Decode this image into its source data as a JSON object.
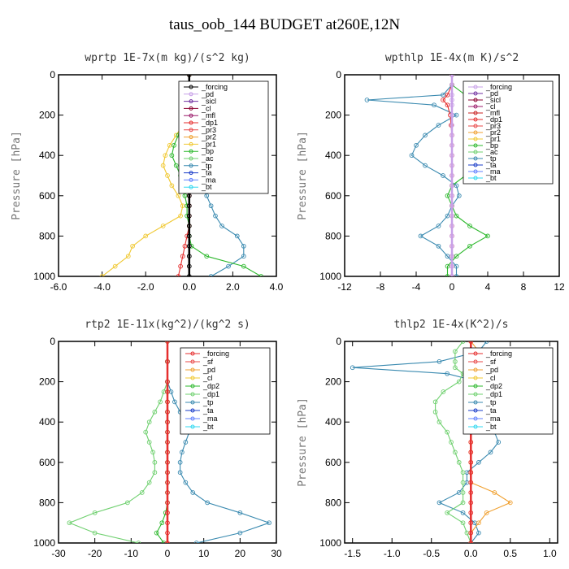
{
  "title": "taus_oob_144  BUDGET at260E,12N",
  "chart_data": [
    {
      "type": "line",
      "title": "wprtp  1E-7x(m kg)/(s^2 kg)",
      "ylabel": "Pressure [hPa]",
      "xlabel": "",
      "xlim": [
        -6,
        4
      ],
      "ylim": [
        1000,
        0
      ],
      "xticks": [
        "-6.0",
        "-4.0",
        "-2.0",
        "0.0",
        "2.0",
        "4.0"
      ],
      "xtick_values": [
        -6,
        -4,
        -2,
        0,
        2,
        4
      ],
      "yticks": [
        "0",
        "200",
        "400",
        "600",
        "800",
        "1000"
      ],
      "ytick_values": [
        0,
        200,
        400,
        600,
        800,
        1000
      ],
      "pressure": [
        0,
        50,
        100,
        150,
        200,
        250,
        300,
        350,
        400,
        450,
        500,
        550,
        600,
        650,
        700,
        750,
        800,
        850,
        900,
        950,
        1000
      ],
      "legend_position": "top-right",
      "legend": [
        "_forcing",
        "_pd",
        "_sicl",
        "_cl",
        "_mfl",
        "_dp1",
        "_pr3",
        "_pr2",
        "_pr1",
        "_bp",
        "_ac",
        "_tp",
        "_ta",
        "_ma",
        "_bt"
      ],
      "legend_colors": [
        "#000000",
        "#c8a0e8",
        "#7030a0",
        "#8b0030",
        "#9b1b6b",
        "#e62e2e",
        "#e84a4a",
        "#f0a030",
        "#f0c830",
        "#2db82d",
        "#6fd06f",
        "#3a8ab0",
        "#1a3cc8",
        "#6080ff",
        "#30d8f0"
      ],
      "series": [
        {
          "name": "_tp",
          "color": "#3a8ab0",
          "values": [
            0,
            0,
            0,
            0,
            0.1,
            0.2,
            0.3,
            0.35,
            0.4,
            0.5,
            0.5,
            0.6,
            0.8,
            1.0,
            1.2,
            1.5,
            2.2,
            2.5,
            2.5,
            1.8,
            1.0
          ]
        },
        {
          "name": "_pr1",
          "color": "#f0c830",
          "values": [
            0,
            0,
            0,
            0,
            -0.1,
            -0.3,
            -0.6,
            -0.9,
            -1.1,
            -1.2,
            -1.0,
            -0.8,
            -0.5,
            -0.3,
            -0.4,
            -1.2,
            -2.0,
            -2.6,
            -2.8,
            -3.4,
            -4.0
          ]
        },
        {
          "name": "_bp",
          "color": "#2db82d",
          "values": [
            0,
            0,
            0,
            0,
            -0.1,
            -0.3,
            -0.5,
            -0.7,
            -0.8,
            -0.6,
            -0.4,
            -0.3,
            -0.2,
            -0.1,
            -0.1,
            0,
            0,
            0.1,
            0.8,
            2.5,
            3.3
          ]
        },
        {
          "name": "_dp1",
          "color": "#e62e2e",
          "values": [
            0,
            0,
            0,
            0,
            0,
            0,
            0,
            0,
            0,
            0,
            0,
            0,
            0,
            0,
            0,
            0,
            -0.1,
            -0.2,
            -0.3,
            -0.4,
            -0.5
          ]
        },
        {
          "name": "_forcing",
          "color": "#000000",
          "values": [
            0,
            0,
            0,
            0,
            0,
            0,
            0,
            0,
            0,
            0,
            0,
            0,
            0,
            0,
            0,
            0,
            0,
            0,
            0,
            0,
            0
          ]
        }
      ]
    },
    {
      "type": "line",
      "title": "wpthlp  1E-4x(m K)/s^2",
      "ylabel": "Pressure [hPa]",
      "xlabel": "",
      "xlim": [
        -12,
        12
      ],
      "ylim": [
        1000,
        0
      ],
      "xticks": [
        "-12",
        "-8",
        "-4",
        "0",
        "4",
        "8",
        "12"
      ],
      "xtick_values": [
        -12,
        -8,
        -4,
        0,
        4,
        8,
        12
      ],
      "yticks": [
        "0",
        "200",
        "400",
        "600",
        "800",
        "1000"
      ],
      "ytick_values": [
        0,
        200,
        400,
        600,
        800,
        1000
      ],
      "pressure": [
        0,
        50,
        100,
        125,
        150,
        200,
        250,
        300,
        350,
        400,
        450,
        500,
        550,
        600,
        650,
        700,
        750,
        800,
        850,
        900,
        950,
        1000
      ],
      "legend_position": "top-right",
      "legend": [
        "_forcing",
        "_pd",
        "_sicl",
        "_cl",
        "_mfl",
        "_dp1",
        "_pr3",
        "_pr2",
        "_pr1",
        "_bp",
        "_ac",
        "_tp",
        "_ta",
        "_ma",
        "_bt"
      ],
      "legend_colors": [
        "#c8a0e8",
        "#7030a0",
        "#8b0030",
        "#9b1b6b",
        "#c82020",
        "#e62e2e",
        "#e84a4a",
        "#f0a030",
        "#f0c830",
        "#2db82d",
        "#6fd06f",
        "#3a8ab0",
        "#1a3cc8",
        "#6080ff",
        "#30d8f0"
      ],
      "series": [
        {
          "name": "_tp",
          "color": "#3a8ab0",
          "values": [
            0,
            0,
            -1,
            -9.5,
            -2,
            0.5,
            -1.5,
            -3,
            -4,
            -4.5,
            -3,
            -1,
            0.5,
            0.8,
            0,
            -0.5,
            -1.5,
            -3.5,
            -1.5,
            -0.5,
            0.5,
            0.5
          ]
        },
        {
          "name": "_bp",
          "color": "#2db82d",
          "values": [
            0,
            0,
            1.5,
            10,
            2,
            1.5,
            3,
            4.5,
            5,
            5,
            3.5,
            1.5,
            0,
            -0.5,
            0,
            0.5,
            2,
            4,
            2,
            0.5,
            -0.5,
            -0.5
          ]
        },
        {
          "name": "_dp1",
          "color": "#e62e2e",
          "values": [
            0,
            0,
            -0.5,
            -1,
            -0.5,
            -0.2,
            -0.1,
            0,
            0,
            0,
            0,
            0,
            0,
            0,
            0,
            0,
            0,
            0,
            0,
            0,
            0,
            0
          ]
        },
        {
          "name": "_forcing",
          "color": "#c8a0e8",
          "values": [
            0,
            0,
            0,
            0,
            0,
            0,
            0,
            0,
            0,
            0,
            0,
            0,
            0,
            0,
            0,
            0,
            0,
            0,
            0,
            0,
            0,
            0
          ]
        }
      ]
    },
    {
      "type": "line",
      "title": "rtp2  1E-11x(kg^2)/(kg^2 s)",
      "ylabel": "",
      "xlabel": "",
      "xlim": [
        -30,
        30
      ],
      "ylim": [
        1000,
        0
      ],
      "xticks": [
        "-30",
        "-20",
        "-10",
        "0",
        "10",
        "20",
        "30"
      ],
      "xtick_values": [
        -30,
        -20,
        -10,
        0,
        10,
        20,
        30
      ],
      "yticks": [
        "0",
        "200",
        "400",
        "600",
        "800",
        "1000"
      ],
      "ytick_values": [
        0,
        200,
        400,
        600,
        800,
        1000
      ],
      "pressure": [
        0,
        100,
        200,
        250,
        300,
        350,
        400,
        450,
        500,
        550,
        600,
        650,
        700,
        750,
        800,
        850,
        900,
        950,
        1000
      ],
      "legend_position": "top-right",
      "legend": [
        "_forcing",
        "_sf",
        "_pd",
        "_cl",
        "_dp2",
        "_dp1",
        "_tp",
        "_ta",
        "_ma",
        "_bt"
      ],
      "legend_colors": [
        "#e62e2e",
        "#e84a4a",
        "#f0a030",
        "#f0c830",
        "#2db82d",
        "#6fd06f",
        "#3a8ab0",
        "#1a3cc8",
        "#6080ff",
        "#30d8f0"
      ],
      "series": [
        {
          "name": "_dp1",
          "color": "#6fd06f",
          "values": [
            0,
            0,
            0,
            -1,
            -2,
            -3.5,
            -5,
            -6,
            -5,
            -4,
            -3.5,
            -3.5,
            -5,
            -7,
            -11,
            -20,
            -27,
            -20,
            -8
          ]
        },
        {
          "name": "_tp",
          "color": "#3a8ab0",
          "values": [
            0,
            0,
            0,
            1,
            2,
            3.5,
            5,
            6,
            5,
            4,
            3.5,
            3.5,
            5,
            7,
            11,
            20,
            28,
            20,
            8
          ]
        },
        {
          "name": "_dp2",
          "color": "#2db82d",
          "values": [
            0,
            0,
            0,
            0,
            0,
            0,
            0,
            0,
            0,
            0,
            0,
            0,
            0,
            0,
            0,
            -0.5,
            -1.5,
            -3,
            -1
          ]
        },
        {
          "name": "_forcing",
          "color": "#e62e2e",
          "values": [
            0,
            0,
            0,
            0,
            0,
            0,
            0,
            0,
            0,
            0,
            0,
            0,
            0,
            0,
            0,
            0,
            0,
            0,
            0
          ]
        }
      ]
    },
    {
      "type": "line",
      "title": "thlp2  1E-4x(K^2)/s",
      "ylabel": "Pressure [hPa]",
      "xlabel": "",
      "xlim": [
        -1.6,
        1.1
      ],
      "ylim": [
        1000,
        0
      ],
      "xticks": [
        "-1.5",
        "-1.0",
        "-0.5",
        "0.0",
        "0.5",
        "1.0"
      ],
      "xtick_values": [
        -1.5,
        -1.0,
        -0.5,
        0,
        0.5,
        1.0
      ],
      "yticks": [
        "0",
        "200",
        "400",
        "600",
        "800",
        "1000"
      ],
      "ytick_values": [
        0,
        200,
        400,
        600,
        800,
        1000
      ],
      "pressure": [
        0,
        50,
        100,
        130,
        160,
        200,
        250,
        300,
        350,
        400,
        450,
        500,
        550,
        600,
        650,
        700,
        750,
        800,
        850,
        900,
        950,
        1000
      ],
      "legend_position": "top-right",
      "legend": [
        "_forcing",
        "_sf",
        "_pd",
        "_cl",
        "_dp2",
        "_dp1",
        "_tp",
        "_ta",
        "_ma",
        "_bt"
      ],
      "legend_colors": [
        "#e62e2e",
        "#e84a4a",
        "#f0a030",
        "#f0c830",
        "#2db82d",
        "#6fd06f",
        "#3a8ab0",
        "#1a3cc8",
        "#6080ff",
        "#30d8f0"
      ],
      "series": [
        {
          "name": "_tp",
          "color": "#3a8ab0",
          "values": [
            0.2,
            0.1,
            -0.4,
            -1.5,
            -0.3,
            0.1,
            0.15,
            0.1,
            0.1,
            0.2,
            0.3,
            0.35,
            0.25,
            0.1,
            -0.05,
            -0.05,
            -0.15,
            -0.4,
            -0.1,
            0.05,
            0.1,
            0
          ]
        },
        {
          "name": "_pd",
          "color": "#f0a030",
          "values": [
            0,
            0.1,
            0.6,
            1.0,
            0.5,
            0.2,
            0.1,
            0,
            0,
            0,
            0,
            0,
            0,
            0,
            0,
            0,
            0.3,
            0.5,
            0.2,
            0.1,
            0,
            0
          ]
        },
        {
          "name": "_dp1",
          "color": "#6fd06f",
          "values": [
            -0.1,
            -0.2,
            -0.2,
            -0.2,
            -0.1,
            -0.15,
            -0.35,
            -0.45,
            -0.45,
            -0.4,
            -0.3,
            -0.25,
            -0.2,
            -0.15,
            -0.1,
            -0.1,
            -0.1,
            -0.1,
            -0.3,
            -0.1,
            -0.05,
            0
          ]
        },
        {
          "name": "_forcing",
          "color": "#e62e2e",
          "values": [
            0,
            0,
            0,
            0,
            0,
            0,
            0,
            0,
            0,
            0,
            0,
            0,
            0,
            0,
            0,
            0,
            0,
            0,
            0,
            0,
            0,
            0
          ]
        }
      ]
    }
  ]
}
